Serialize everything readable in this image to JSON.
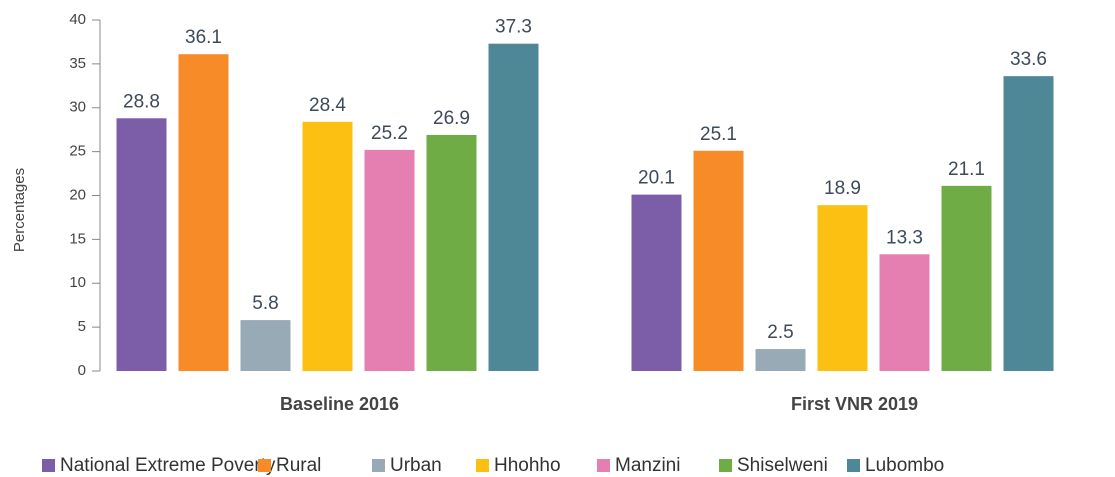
{
  "chart_data": {
    "type": "bar",
    "y_label": "Percentages",
    "categories": [
      "Baseline 2016",
      "First VNR 2019"
    ],
    "series": [
      {
        "name": "National Extreme Poverty",
        "color": "#7b5ea7",
        "values": [
          28.8,
          20.1
        ]
      },
      {
        "name": "Rural",
        "color": "#f68b28",
        "values": [
          36.1,
          25.1
        ]
      },
      {
        "name": "Urban",
        "color": "#97aab5",
        "values": [
          5.8,
          2.5
        ]
      },
      {
        "name": "Hhohho",
        "color": "#fbc012",
        "values": [
          28.4,
          18.9
        ]
      },
      {
        "name": "Manzini",
        "color": "#e57fb1",
        "values": [
          25.2,
          13.3
        ]
      },
      {
        "name": "Shiselweni",
        "color": "#6fac46",
        "values": [
          26.9,
          21.1
        ]
      },
      {
        "name": "Lubombo",
        "color": "#4e8796",
        "values": [
          37.3,
          33.6
        ]
      }
    ],
    "ylim": [
      0,
      40
    ],
    "yticks": [
      0,
      5,
      10,
      15,
      20,
      25,
      30,
      35,
      40
    ],
    "legend": "bottom"
  }
}
